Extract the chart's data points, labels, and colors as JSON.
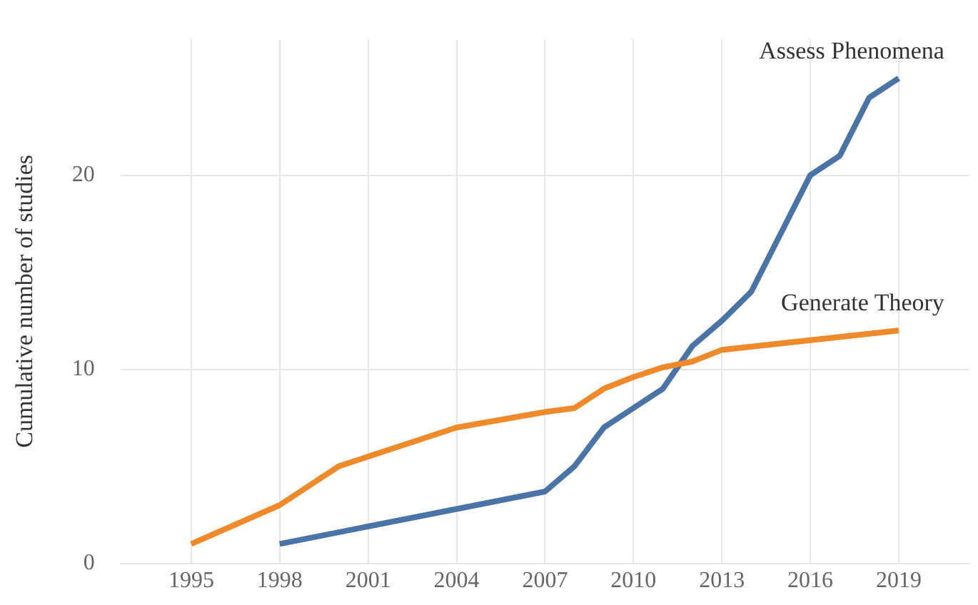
{
  "chart_data": {
    "type": "line",
    "ylabel": "Cumulative number of studies",
    "xlim": [
      1992.6,
      2021.4
    ],
    "xticks": [
      1995,
      1998,
      2001,
      2004,
      2007,
      2010,
      2013,
      2016,
      2019
    ],
    "ylim": [
      0,
      27
    ],
    "yticks": [
      0,
      10,
      20
    ],
    "grid": true,
    "legend": false,
    "series": [
      {
        "name": "Generate Theory",
        "color": "#ee8a2a",
        "x": [
          1995,
          1998,
          2000,
          2004,
          2007,
          2008,
          2009,
          2010,
          2011,
          2012,
          2013,
          2019
        ],
        "values": [
          1,
          3,
          5,
          7,
          7.8,
          8,
          9,
          9.6,
          10.1,
          10.4,
          11,
          12
        ]
      },
      {
        "name": "Assess Phenomena",
        "color": "#4a73a6",
        "x": [
          1998,
          2007,
          2008,
          2009,
          2010,
          2011,
          2012,
          2013,
          2014,
          2015,
          2016,
          2017,
          2018,
          2019
        ],
        "values": [
          1,
          3.7,
          5,
          7,
          8,
          9,
          11.2,
          12.5,
          14,
          17,
          20,
          21,
          24,
          25
        ]
      }
    ]
  }
}
